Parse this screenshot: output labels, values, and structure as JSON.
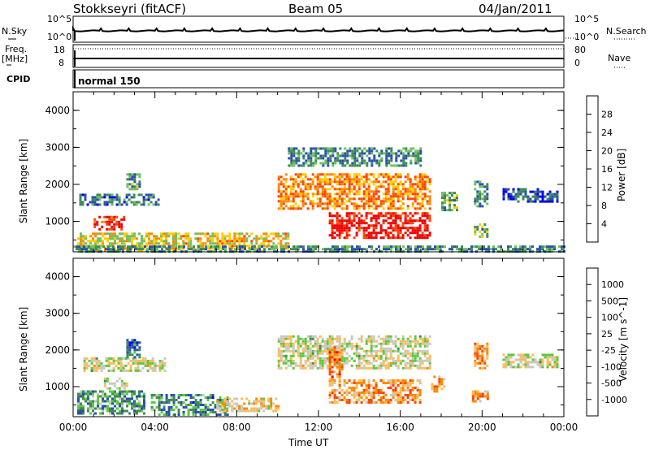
{
  "header": {
    "station": "Stokkseyri (fitACF)",
    "beam": "Beam 05",
    "date": "04/Jan/2011"
  },
  "top_panel": {
    "left_label": "N.Sky",
    "right_label": "N.Search",
    "left_ticks": [
      "10^5",
      "10^0"
    ],
    "right_ticks": [
      "10^5",
      "10^0"
    ]
  },
  "freq_panel": {
    "left_label_1": "Freq.",
    "left_label_2": "[MHz]",
    "right_label": "Nave",
    "left_ticks": [
      "18",
      "8"
    ],
    "right_ticks": [
      "80",
      "0"
    ]
  },
  "cpid_panel": {
    "label": "CPID",
    "mode": "normal 150"
  },
  "colors": {
    "power": [
      "#0000ee",
      "#2a4fb0",
      "#3d8a55",
      "#6fbf60",
      "#ffcc00",
      "#ff8800",
      "#ff4400",
      "#ee0000"
    ],
    "velocity": [
      "#ee0000",
      "#ff4400",
      "#ff8800",
      "#ffbb55",
      "#c8c8c0",
      "#5cc840",
      "#3d8a55",
      "#2a4fb0",
      "#0000ee"
    ]
  },
  "chart_data": [
    {
      "type": "heatmap",
      "title": "Power",
      "ylabel": "Slant Range [km]",
      "xlabel": "Time UT",
      "xlim": [
        "00:00",
        "24:00"
      ],
      "ylim": [
        180,
        4500
      ],
      "x_ticks": [
        "00:00",
        "04:00",
        "08:00",
        "12:00",
        "16:00",
        "20:00",
        "00:00"
      ],
      "y_ticks": [
        1000,
        2000,
        3000,
        4000
      ],
      "colorbar": {
        "label": "Power [dB]",
        "ticks": [
          4,
          8,
          12,
          16,
          20,
          24,
          28
        ]
      },
      "regions": [
        {
          "t0": 0.2,
          "t1": 5.0,
          "r0": 200,
          "r1": 700,
          "level": 0.55
        },
        {
          "t0": 1.0,
          "t1": 2.5,
          "r0": 800,
          "r1": 1150,
          "level": 0.9
        },
        {
          "t0": 0.3,
          "t1": 4.2,
          "r0": 1450,
          "r1": 1750,
          "level": 0.25
        },
        {
          "t0": 2.6,
          "t1": 3.2,
          "r0": 1900,
          "r1": 2300,
          "level": 0.35
        },
        {
          "t0": 4.5,
          "t1": 10.5,
          "r0": 250,
          "r1": 700,
          "level": 0.6
        },
        {
          "t0": 10.0,
          "t1": 17.5,
          "r0": 1350,
          "r1": 2300,
          "level": 0.7
        },
        {
          "t0": 12.5,
          "t1": 17.5,
          "r0": 550,
          "r1": 1250,
          "level": 0.95
        },
        {
          "t0": 10.5,
          "t1": 17.0,
          "r0": 2500,
          "r1": 3000,
          "level": 0.3
        },
        {
          "t0": 18.0,
          "t1": 18.8,
          "r0": 1300,
          "r1": 1800,
          "level": 0.4
        },
        {
          "t0": 19.6,
          "t1": 20.2,
          "r0": 1400,
          "r1": 2100,
          "level": 0.3
        },
        {
          "t0": 19.6,
          "t1": 20.3,
          "r0": 600,
          "r1": 950,
          "level": 0.4
        },
        {
          "t0": 21.0,
          "t1": 23.7,
          "r0": 1550,
          "r1": 1900,
          "level": 0.2
        },
        {
          "t0": 0.0,
          "t1": 24.0,
          "r0": 180,
          "r1": 350,
          "level": 0.3
        }
      ]
    },
    {
      "type": "heatmap",
      "title": "Velocity",
      "ylabel": "Slant Range [km]",
      "xlabel": "Time UT",
      "xlim": [
        "00:00",
        "24:00"
      ],
      "ylim": [
        180,
        4500
      ],
      "x_ticks": [
        "00:00",
        "04:00",
        "08:00",
        "12:00",
        "16:00",
        "20:00",
        "00:00"
      ],
      "y_ticks": [
        1000,
        2000,
        3000,
        4000
      ],
      "colorbar": {
        "label": "Velocity [m s^-1]",
        "ticks": [
          1000,
          500,
          100,
          25,
          -25,
          -100,
          -500,
          -1000
        ]
      },
      "regions": [
        {
          "t0": 0.2,
          "t1": 3.5,
          "r0": 250,
          "r1": 900,
          "level": 0.7
        },
        {
          "t0": 1.5,
          "t1": 2.6,
          "r0": 950,
          "r1": 1250,
          "level": 0.5
        },
        {
          "t0": 0.5,
          "t1": 4.5,
          "r0": 1450,
          "r1": 1800,
          "level": 0.5
        },
        {
          "t0": 2.6,
          "t1": 3.2,
          "r0": 1800,
          "r1": 2300,
          "level": 0.8
        },
        {
          "t0": 3.8,
          "t1": 7.5,
          "r0": 250,
          "r1": 800,
          "level": 0.72
        },
        {
          "t0": 7.0,
          "t1": 10.0,
          "r0": 350,
          "r1": 700,
          "level": 0.4
        },
        {
          "t0": 10.0,
          "t1": 17.5,
          "r0": 1500,
          "r1": 2400,
          "level": 0.5
        },
        {
          "t0": 12.5,
          "t1": 17.0,
          "r0": 600,
          "r1": 1200,
          "level": 0.3
        },
        {
          "t0": 12.5,
          "t1": 13.2,
          "r0": 1200,
          "r1": 2100,
          "level": 0.25
        },
        {
          "t0": 17.5,
          "t1": 18.2,
          "r0": 900,
          "r1": 1300,
          "level": 0.3
        },
        {
          "t0": 19.6,
          "t1": 20.2,
          "r0": 1500,
          "r1": 2200,
          "level": 0.3
        },
        {
          "t0": 19.5,
          "t1": 20.3,
          "r0": 600,
          "r1": 900,
          "level": 0.3
        },
        {
          "t0": 21.0,
          "t1": 23.7,
          "r0": 1550,
          "r1": 1900,
          "level": 0.5
        }
      ]
    }
  ]
}
